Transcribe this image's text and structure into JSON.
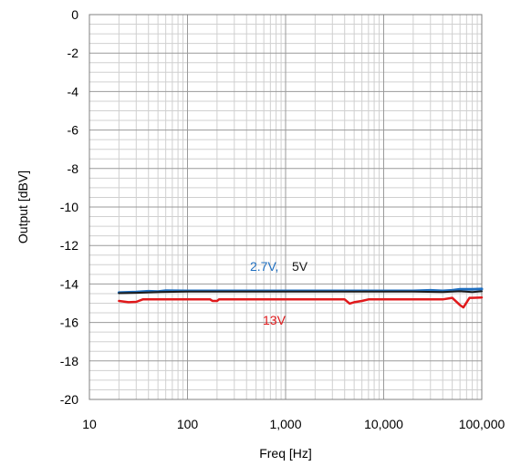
{
  "chart_data": {
    "type": "line",
    "title": "",
    "xlabel": "Freq [Hz]",
    "ylabel": "Output [dBV]",
    "x_scale": "log",
    "xlim": [
      10,
      100000
    ],
    "ylim": [
      -20,
      0
    ],
    "grid": true,
    "x_ticks": [
      {
        "value": 10,
        "label": "10"
      },
      {
        "value": 100,
        "label": "100"
      },
      {
        "value": 1000,
        "label": "1,000"
      },
      {
        "value": 10000,
        "label": "10,000"
      },
      {
        "value": 100000,
        "label": "100,000"
      }
    ],
    "y_ticks": [
      {
        "value": 0,
        "label": "0"
      },
      {
        "value": -2,
        "label": "-2"
      },
      {
        "value": -4,
        "label": "-4"
      },
      {
        "value": -6,
        "label": "-6"
      },
      {
        "value": -8,
        "label": "-8"
      },
      {
        "value": -10,
        "label": "-10"
      },
      {
        "value": -12,
        "label": "-12"
      },
      {
        "value": -14,
        "label": "-14"
      },
      {
        "value": -16,
        "label": "-16"
      },
      {
        "value": -18,
        "label": "-18"
      },
      {
        "value": -20,
        "label": "-20"
      }
    ],
    "series": [
      {
        "name": "2.7V,",
        "color": "#1f6fc0",
        "stroke": 3,
        "x": [
          20,
          30,
          40,
          50,
          60,
          100,
          200,
          500,
          1000,
          2000,
          5000,
          10000,
          20000,
          30000,
          40000,
          50000,
          60000,
          80000,
          100000
        ],
        "y": [
          -14.45,
          -14.42,
          -14.38,
          -14.4,
          -14.35,
          -14.36,
          -14.36,
          -14.36,
          -14.36,
          -14.36,
          -14.36,
          -14.36,
          -14.36,
          -14.33,
          -14.36,
          -14.33,
          -14.28,
          -14.28,
          -14.26
        ]
      },
      {
        "name": "5V",
        "color": "#1a1a1a",
        "stroke": 2,
        "x": [
          20,
          30,
          50,
          100,
          200,
          500,
          1000,
          2000,
          5000,
          10000,
          20000,
          40000,
          50000,
          60000,
          80000,
          100000
        ],
        "y": [
          -14.48,
          -14.46,
          -14.42,
          -14.4,
          -14.4,
          -14.4,
          -14.4,
          -14.4,
          -14.4,
          -14.4,
          -14.4,
          -14.42,
          -14.4,
          -14.38,
          -14.42,
          -14.38
        ]
      },
      {
        "name": "13V",
        "color": "#e0191b",
        "stroke": 2.5,
        "x": [
          20,
          25,
          30,
          35,
          100,
          170,
          180,
          200,
          210,
          500,
          1000,
          2000,
          4000,
          4500,
          5000,
          6000,
          7000,
          10000,
          20000,
          30000,
          40000,
          50000,
          60000,
          65000,
          75000,
          80000,
          100000
        ],
        "y": [
          -14.88,
          -14.95,
          -14.93,
          -14.8,
          -14.8,
          -14.8,
          -14.88,
          -14.88,
          -14.8,
          -14.8,
          -14.8,
          -14.8,
          -14.8,
          -15.02,
          -14.95,
          -14.88,
          -14.8,
          -14.8,
          -14.8,
          -14.8,
          -14.8,
          -14.72,
          -15.1,
          -15.22,
          -14.72,
          -14.72,
          -14.7
        ]
      }
    ]
  }
}
